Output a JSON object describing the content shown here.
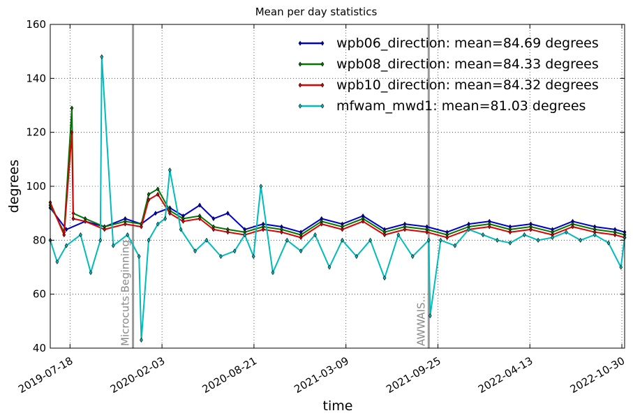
{
  "chart_data": {
    "type": "line",
    "title": "Mean per day statistics",
    "xlabel": "time",
    "ylabel": "degrees",
    "xlim": [
      "2019-06-05",
      "2022-11-05"
    ],
    "ylim": [
      40,
      160
    ],
    "x_ticks": [
      "2019-07-18",
      "2020-02-03",
      "2020-08-21",
      "2021-03-09",
      "2021-09-25",
      "2022-04-13",
      "2022-10-30"
    ],
    "y_ticks": [
      40,
      60,
      80,
      100,
      120,
      140,
      160
    ],
    "grid": true,
    "legend_position": "top-right",
    "vertical_markers": [
      {
        "date": "2019-12-02",
        "label": "Microcuts Beginning"
      },
      {
        "date": "2021-09-05",
        "label": "AWWAIS..."
      }
    ],
    "series": [
      {
        "name": "wpb06_direction: mean=84.69 degrees",
        "color": "#0000cc",
        "x": [
          "2019-06-05",
          "2019-07-10",
          "2019-08-20",
          "2019-10-01",
          "2019-11-15",
          "2019-12-20",
          "2020-01-20",
          "2020-02-20",
          "2020-03-20",
          "2020-04-25",
          "2020-05-25",
          "2020-06-25",
          "2020-08-01",
          "2020-09-10",
          "2020-10-20",
          "2020-12-01",
          "2021-01-15",
          "2021-03-01",
          "2021-04-15",
          "2021-06-01",
          "2021-07-15",
          "2021-09-01",
          "2021-10-15",
          "2021-12-01",
          "2022-01-15",
          "2022-03-01",
          "2022-04-15",
          "2022-06-01",
          "2022-07-15",
          "2022-09-01",
          "2022-10-15",
          "2022-11-05"
        ],
        "y": [
          92,
          84,
          87,
          85,
          88,
          86,
          90,
          92,
          89,
          93,
          88,
          90,
          84,
          86,
          85,
          83,
          88,
          86,
          89,
          84,
          86,
          85,
          83,
          86,
          87,
          85,
          86,
          84,
          87,
          85,
          84,
          83
        ]
      },
      {
        "name": "wpb08_direction: mean=84.33 degrees",
        "color": "#007700",
        "x": [
          "2019-06-05",
          "2019-07-05",
          "2019-07-22",
          "2019-07-25",
          "2019-08-20",
          "2019-10-01",
          "2019-11-15",
          "2019-12-20",
          "2020-01-05",
          "2020-01-25",
          "2020-02-20",
          "2020-03-20",
          "2020-04-25",
          "2020-05-25",
          "2020-06-25",
          "2020-08-01",
          "2020-09-10",
          "2020-10-20",
          "2020-12-01",
          "2021-01-15",
          "2021-03-01",
          "2021-04-15",
          "2021-06-01",
          "2021-07-15",
          "2021-09-01",
          "2021-10-15",
          "2021-12-01",
          "2022-01-15",
          "2022-03-01",
          "2022-04-15",
          "2022-06-01",
          "2022-07-15",
          "2022-09-01",
          "2022-10-15",
          "2022-11-05"
        ],
        "y": [
          93,
          83,
          129,
          90,
          88,
          85,
          87,
          86,
          97,
          99,
          91,
          88,
          89,
          85,
          84,
          83,
          85,
          84,
          82,
          87,
          85,
          88,
          83,
          85,
          84,
          82,
          85,
          86,
          84,
          85,
          83,
          86,
          84,
          83,
          82
        ]
      },
      {
        "name": "wpb10_direction: mean=84.32 degrees",
        "color": "#dd0000",
        "x": [
          "2019-06-05",
          "2019-07-05",
          "2019-07-22",
          "2019-07-25",
          "2019-08-20",
          "2019-10-01",
          "2019-11-15",
          "2019-12-20",
          "2020-01-05",
          "2020-01-25",
          "2020-02-20",
          "2020-03-20",
          "2020-04-25",
          "2020-05-25",
          "2020-06-25",
          "2020-08-01",
          "2020-09-10",
          "2020-10-20",
          "2020-12-01",
          "2021-01-15",
          "2021-03-01",
          "2021-04-15",
          "2021-06-01",
          "2021-07-15",
          "2021-09-01",
          "2021-10-15",
          "2021-12-01",
          "2022-01-15",
          "2022-03-01",
          "2022-04-15",
          "2022-06-01",
          "2022-07-15",
          "2022-09-01",
          "2022-10-15",
          "2022-11-05"
        ],
        "y": [
          94,
          82,
          120,
          88,
          87,
          84,
          86,
          85,
          95,
          97,
          90,
          87,
          88,
          84,
          83,
          82,
          84,
          83,
          81,
          86,
          84,
          87,
          82,
          84,
          83,
          81,
          84,
          85,
          83,
          84,
          82,
          85,
          83,
          82,
          81
        ]
      },
      {
        "name": "mfwam_mwd1: mean=81.03 degrees",
        "color": "#00bbbb",
        "x": [
          "2019-06-05",
          "2019-06-20",
          "2019-07-10",
          "2019-08-10",
          "2019-09-01",
          "2019-09-22",
          "2019-09-25",
          "2019-10-20",
          "2019-11-20",
          "2019-12-15",
          "2019-12-20",
          "2020-01-05",
          "2020-01-25",
          "2020-02-10",
          "2020-02-20",
          "2020-03-15",
          "2020-04-15",
          "2020-05-10",
          "2020-06-10",
          "2020-07-10",
          "2020-08-01",
          "2020-08-20",
          "2020-09-05",
          "2020-10-01",
          "2020-11-01",
          "2020-12-01",
          "2021-01-01",
          "2021-02-01",
          "2021-03-01",
          "2021-04-01",
          "2021-05-01",
          "2021-06-01",
          "2021-07-01",
          "2021-08-01",
          "2021-09-05",
          "2021-09-08",
          "2021-10-01",
          "2021-11-01",
          "2021-12-01",
          "2022-01-01",
          "2022-02-01",
          "2022-03-01",
          "2022-04-01",
          "2022-05-01",
          "2022-06-01",
          "2022-07-01",
          "2022-08-01",
          "2022-09-01",
          "2022-10-01",
          "2022-10-28",
          "2022-11-05"
        ],
        "y": [
          80,
          72,
          78,
          82,
          68,
          80,
          148,
          78,
          82,
          74,
          43,
          80,
          86,
          88,
          106,
          84,
          76,
          80,
          74,
          76,
          82,
          74,
          100,
          68,
          80,
          76,
          82,
          70,
          80,
          74,
          80,
          66,
          82,
          74,
          80,
          52,
          80,
          78,
          84,
          82,
          80,
          79,
          82,
          80,
          81,
          83,
          80,
          82,
          79,
          70,
          81
        ]
      }
    ]
  }
}
